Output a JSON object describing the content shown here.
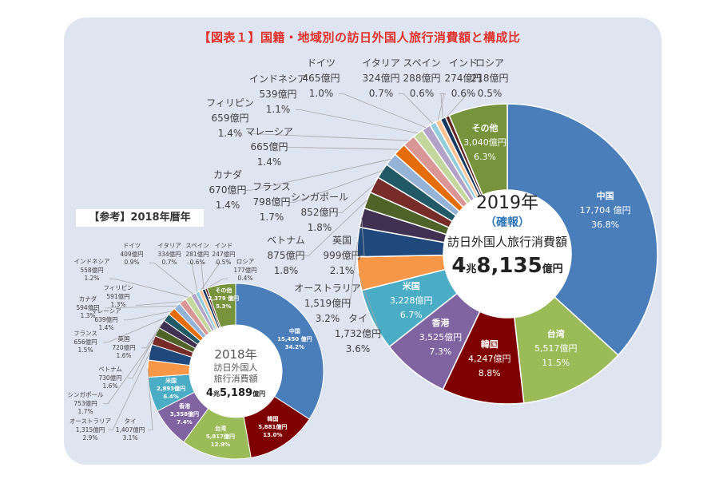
{
  "title": "【図表１】国籍・地域別の訪日外国人旅行消費額と構成比",
  "reference_label": "【参考】2018年暦年",
  "chart_data": [
    {
      "type": "pie",
      "donut": true,
      "year_label": "2019年",
      "status_label": "（確報）",
      "center_caption": "訪日外国人旅行消費額",
      "total_label": {
        "cho": "4",
        "cho_unit": "兆",
        "oku": "8,135",
        "oku_unit": "億円"
      },
      "unit": "億円",
      "categories": [
        "中国",
        "台湾",
        "韓国",
        "香港",
        "米国",
        "タイ",
        "オーストラリア",
        "英国",
        "ベトナム",
        "シンガポール",
        "フランス",
        "カナダ",
        "マレーシア",
        "フィリピン",
        "インドネシア",
        "ドイツ",
        "イタリア",
        "スペイン",
        "インド",
        "ロシア",
        "その他"
      ],
      "values": [
        17704,
        5517,
        4247,
        3525,
        3228,
        1732,
        1519,
        999,
        875,
        852,
        798,
        670,
        665,
        659,
        539,
        465,
        324,
        288,
        274,
        218,
        3040
      ],
      "value_labels": [
        "17,704 億円",
        "5,517億円",
        "4,247億円",
        "3,525億円",
        "3,228億円",
        "1,732億円",
        "1,519億円",
        "999億円",
        "875億円",
        "852億円",
        "798億円",
        "670億円",
        "665億円",
        "659億円",
        "539億円",
        "465億円",
        "324億円",
        "288億円",
        "274億円",
        "218億円",
        "3,040億円"
      ],
      "percent_labels": [
        "36.8%",
        "11.5%",
        "8.8%",
        "7.3%",
        "6.7%",
        "3.6%",
        "3.2%",
        "2.1%",
        "1.8%",
        "1.8%",
        "1.7%",
        "1.4%",
        "1.4%",
        "1.4%",
        "1.1%",
        "1.0%",
        "0.7%",
        "0.6%",
        "0.6%",
        "0.5%",
        "6.3%"
      ]
    },
    {
      "type": "pie",
      "donut": true,
      "year_label": "2018年",
      "center_caption": [
        "訪日外国人",
        "旅行消費額"
      ],
      "total_label": {
        "cho": "4",
        "cho_unit": "兆",
        "oku": "5,189",
        "oku_unit": "億円"
      },
      "unit": "億円",
      "categories": [
        "中国",
        "韓国",
        "台湾",
        "香港",
        "米国",
        "タイ",
        "オーストラリア",
        "シンガポール",
        "ベトナム",
        "英国",
        "フランス",
        "マレーシア",
        "カナダ",
        "フィリピン",
        "インドネシア",
        "ドイツ",
        "イタリア",
        "スペイン",
        "インド",
        "ロシア",
        "その他"
      ],
      "values": [
        15450,
        5881,
        5817,
        3358,
        2893,
        1407,
        1315,
        753,
        730,
        720,
        656,
        639,
        594,
        591,
        558,
        409,
        334,
        281,
        247,
        177,
        2379
      ],
      "value_labels": [
        "15,450 億円",
        "5,881億円",
        "5,817億円",
        "3,358億円",
        "2,893億円",
        "1,407億円",
        "1,315億円",
        "753億円",
        "730億円",
        "720億円",
        "656億円",
        "639億円",
        "594億円",
        "591億円",
        "558億円",
        "409億円",
        "334億円",
        "281億円",
        "247億円",
        "177億円",
        "2,379 億円"
      ],
      "percent_labels": [
        "34.2%",
        "13.0%",
        "12.9%",
        "7.4%",
        "6.4%",
        "3.1%",
        "2.9%",
        "1.7%",
        "1.6%",
        "1.6%",
        "1.5%",
        "1.4%",
        "1.3%",
        "1.3%",
        "1.2%",
        "0.9%",
        "0.7%",
        "0.6%",
        "0.5%",
        "0.4%",
        "5.3%"
      ]
    }
  ],
  "colors": {
    "中国": "#4a7ebb",
    "台湾": "#9bbb59",
    "韓国": "#7f0000",
    "香港": "#8064a2",
    "米国": "#4bacc6",
    "タイ": "#f79646",
    "オーストラリア": "#1f497d",
    "英国": "#403152",
    "ベトナム": "#4f6228",
    "シンガポール": "#772c2a",
    "フランス": "#215967",
    "カナダ": "#95b3d7",
    "マレーシア": "#e46c0a",
    "フィリピン": "#d99694",
    "インドネシア": "#c3d69b",
    "ドイツ": "#b3a2c7",
    "イタリア": "#93cddd",
    "スペイン": "#fac090",
    "インド": "#17375e",
    "ロシア": "#632523",
    "その他": "#77933c",
    "title": "#e0302a",
    "status": "#2e75b6",
    "panel": "#dfe4f1"
  }
}
